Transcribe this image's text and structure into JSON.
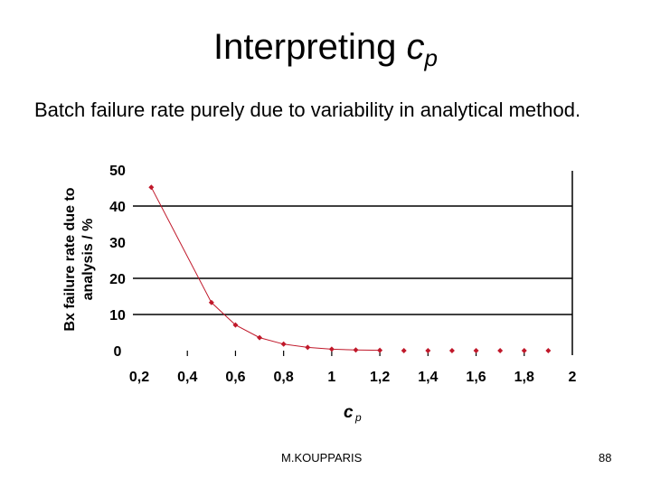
{
  "slide": {
    "title_text": "Interpreting ",
    "title_symbol": "c",
    "title_subscript": "p",
    "subtitle": "Batch failure rate purely due to variability in analytical method.",
    "footer": "M.KOUPPARIS",
    "page_number": "88"
  },
  "chart_data": {
    "type": "line",
    "title": "",
    "xlabel": "c p",
    "ylabel": "Bx failure rate due to analysis / %",
    "ylabel_lines": [
      "Bx failure rate due to",
      "analysis / %"
    ],
    "x": [
      0.25,
      0.5,
      0.6,
      0.7,
      0.8,
      0.9,
      1.0,
      1.1,
      1.2,
      1.3,
      1.4,
      1.5,
      1.6,
      1.7,
      1.8,
      1.9
    ],
    "series": [
      {
        "name": "Batch failure rate",
        "color": "#c0182a",
        "values": [
          45.2,
          13.3,
          7.1,
          3.6,
          1.8,
          0.9,
          0.4,
          0.2,
          0.1,
          0.0,
          0.0,
          0.0,
          0.0,
          0.0,
          0.0,
          0.0
        ]
      }
    ],
    "xlim": [
      0.2,
      2.0
    ],
    "ylim": [
      0,
      50
    ],
    "xticks": [
      "0,2",
      "0,4",
      "0,6",
      "0,8",
      "1",
      "1,2",
      "1,4",
      "1,6",
      "1,8",
      "2"
    ],
    "yticks": [
      "0",
      "10",
      "20",
      "30",
      "40",
      "50"
    ],
    "gridlines_y": [
      10,
      20,
      40
    ],
    "grid": true,
    "legend": "none"
  }
}
